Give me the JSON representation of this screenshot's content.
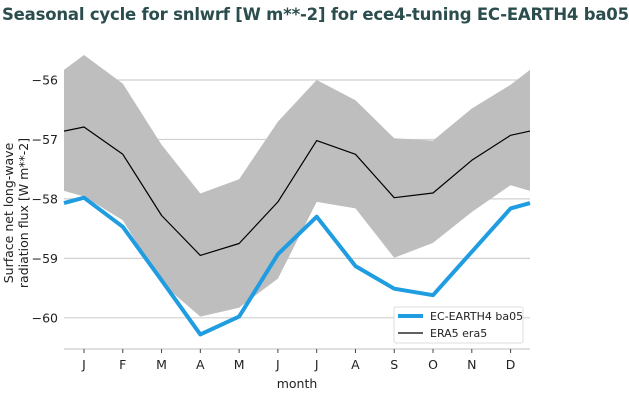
{
  "title": "Seasonal cycle for snlwrf [W m**-2] for ece4-tuning EC-EARTH4 ba05",
  "chart_data": {
    "type": "line",
    "title": "Seasonal cycle for snlwrf [W m**-2] for ece4-tuning EC-EARTH4 ba05",
    "xlabel": "month",
    "ylabel": "Surface net long-wave radiation flux [W m**-2]",
    "ylabel_lines": [
      "Surface net long-wave",
      "radiation flux [W m**-2]"
    ],
    "categories": [
      "J",
      "F",
      "M",
      "A",
      "M",
      "J",
      "J",
      "A",
      "S",
      "O",
      "N",
      "D"
    ],
    "yticks": [
      -56,
      -57,
      -58,
      -59,
      -60
    ],
    "ylim": [
      -60.5,
      -55.5
    ],
    "grid": "horizontal",
    "legend_position": "bottom-right",
    "series": [
      {
        "name": "EC-EARTH4 ba05",
        "color": "#1f9de0",
        "values": [
          -57.98,
          -58.47,
          -59.37,
          -60.28,
          -59.98,
          -58.93,
          -58.3,
          -59.13,
          -59.51,
          -59.62,
          -58.89,
          -58.16
        ]
      },
      {
        "name": "ERA5 era5",
        "color": "#000000",
        "values": [
          -56.79,
          -57.25,
          -58.28,
          -58.95,
          -58.75,
          -58.05,
          -57.02,
          -57.25,
          -57.98,
          -57.9,
          -57.35,
          -56.93
        ]
      }
    ],
    "band": {
      "color": "#bebebe",
      "upper": [
        -55.58,
        -56.06,
        -57.09,
        -57.91,
        -57.67,
        -56.7,
        -56.0,
        -56.34,
        -56.98,
        -57.02,
        -56.48,
        -56.08
      ],
      "lower": [
        -57.96,
        -58.36,
        -59.42,
        -59.98,
        -59.83,
        -59.34,
        -58.05,
        -58.16,
        -58.99,
        -58.74,
        -58.22,
        -57.77
      ]
    }
  }
}
